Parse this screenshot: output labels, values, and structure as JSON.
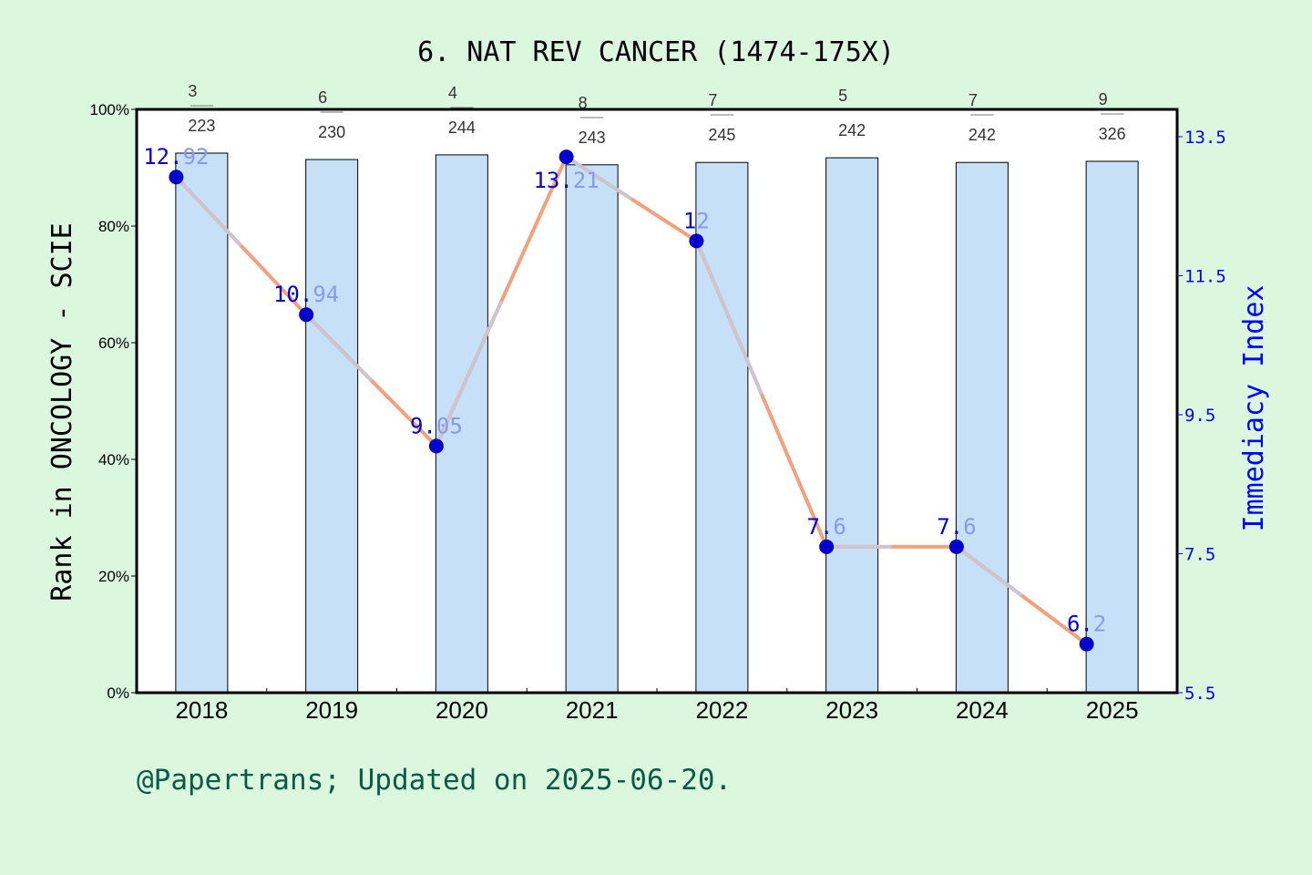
{
  "chart_data": {
    "type": "bar+line",
    "title": "6. NAT REV CANCER (1474-175X)",
    "ylabel": "Rank in ONCOLOGY - SCIE",
    "y2label": "Immediacy Index",
    "categories": [
      "2018",
      "2019",
      "2020",
      "2021",
      "2022",
      "2023",
      "2024",
      "2025"
    ],
    "ylim": [
      0,
      100
    ],
    "yticks": [
      "0%",
      "20%",
      "40%",
      "60%",
      "80%",
      "100%"
    ],
    "y2lim": [
      5.5,
      13.5
    ],
    "y2ticks": [
      "5.5",
      "7.5",
      "9.5",
      "11.5",
      "13.5"
    ],
    "bars": {
      "values": [
        92.5,
        91.4,
        92.2,
        90.5,
        90.9,
        91.7,
        90.9,
        91.1
      ],
      "rank": [
        "3",
        "6",
        "4",
        "8",
        "7",
        "5",
        "7",
        "9"
      ],
      "total": [
        "223",
        "230",
        "244",
        "243",
        "245",
        "242",
        "242",
        "326"
      ],
      "color": "#c5e0f7"
    },
    "line": {
      "values": [
        12.92,
        10.94,
        9.05,
        13.21,
        12,
        7.6,
        7.6,
        6.2
      ],
      "labels": [
        "12.92",
        "10.94",
        "9.05",
        "13.21",
        "12",
        "7.6",
        "7.6",
        "6.2"
      ],
      "color": "#f4a07a",
      "alt_color": "#c8c8d8",
      "marker_color": "#0000cc"
    },
    "grid": false
  },
  "footer": "@Papertrans; Updated on 2025-06-20.",
  "colors": {
    "background": "#dbf7dd",
    "right_axis": "#0000ff",
    "footer": "#0a5a4a"
  }
}
